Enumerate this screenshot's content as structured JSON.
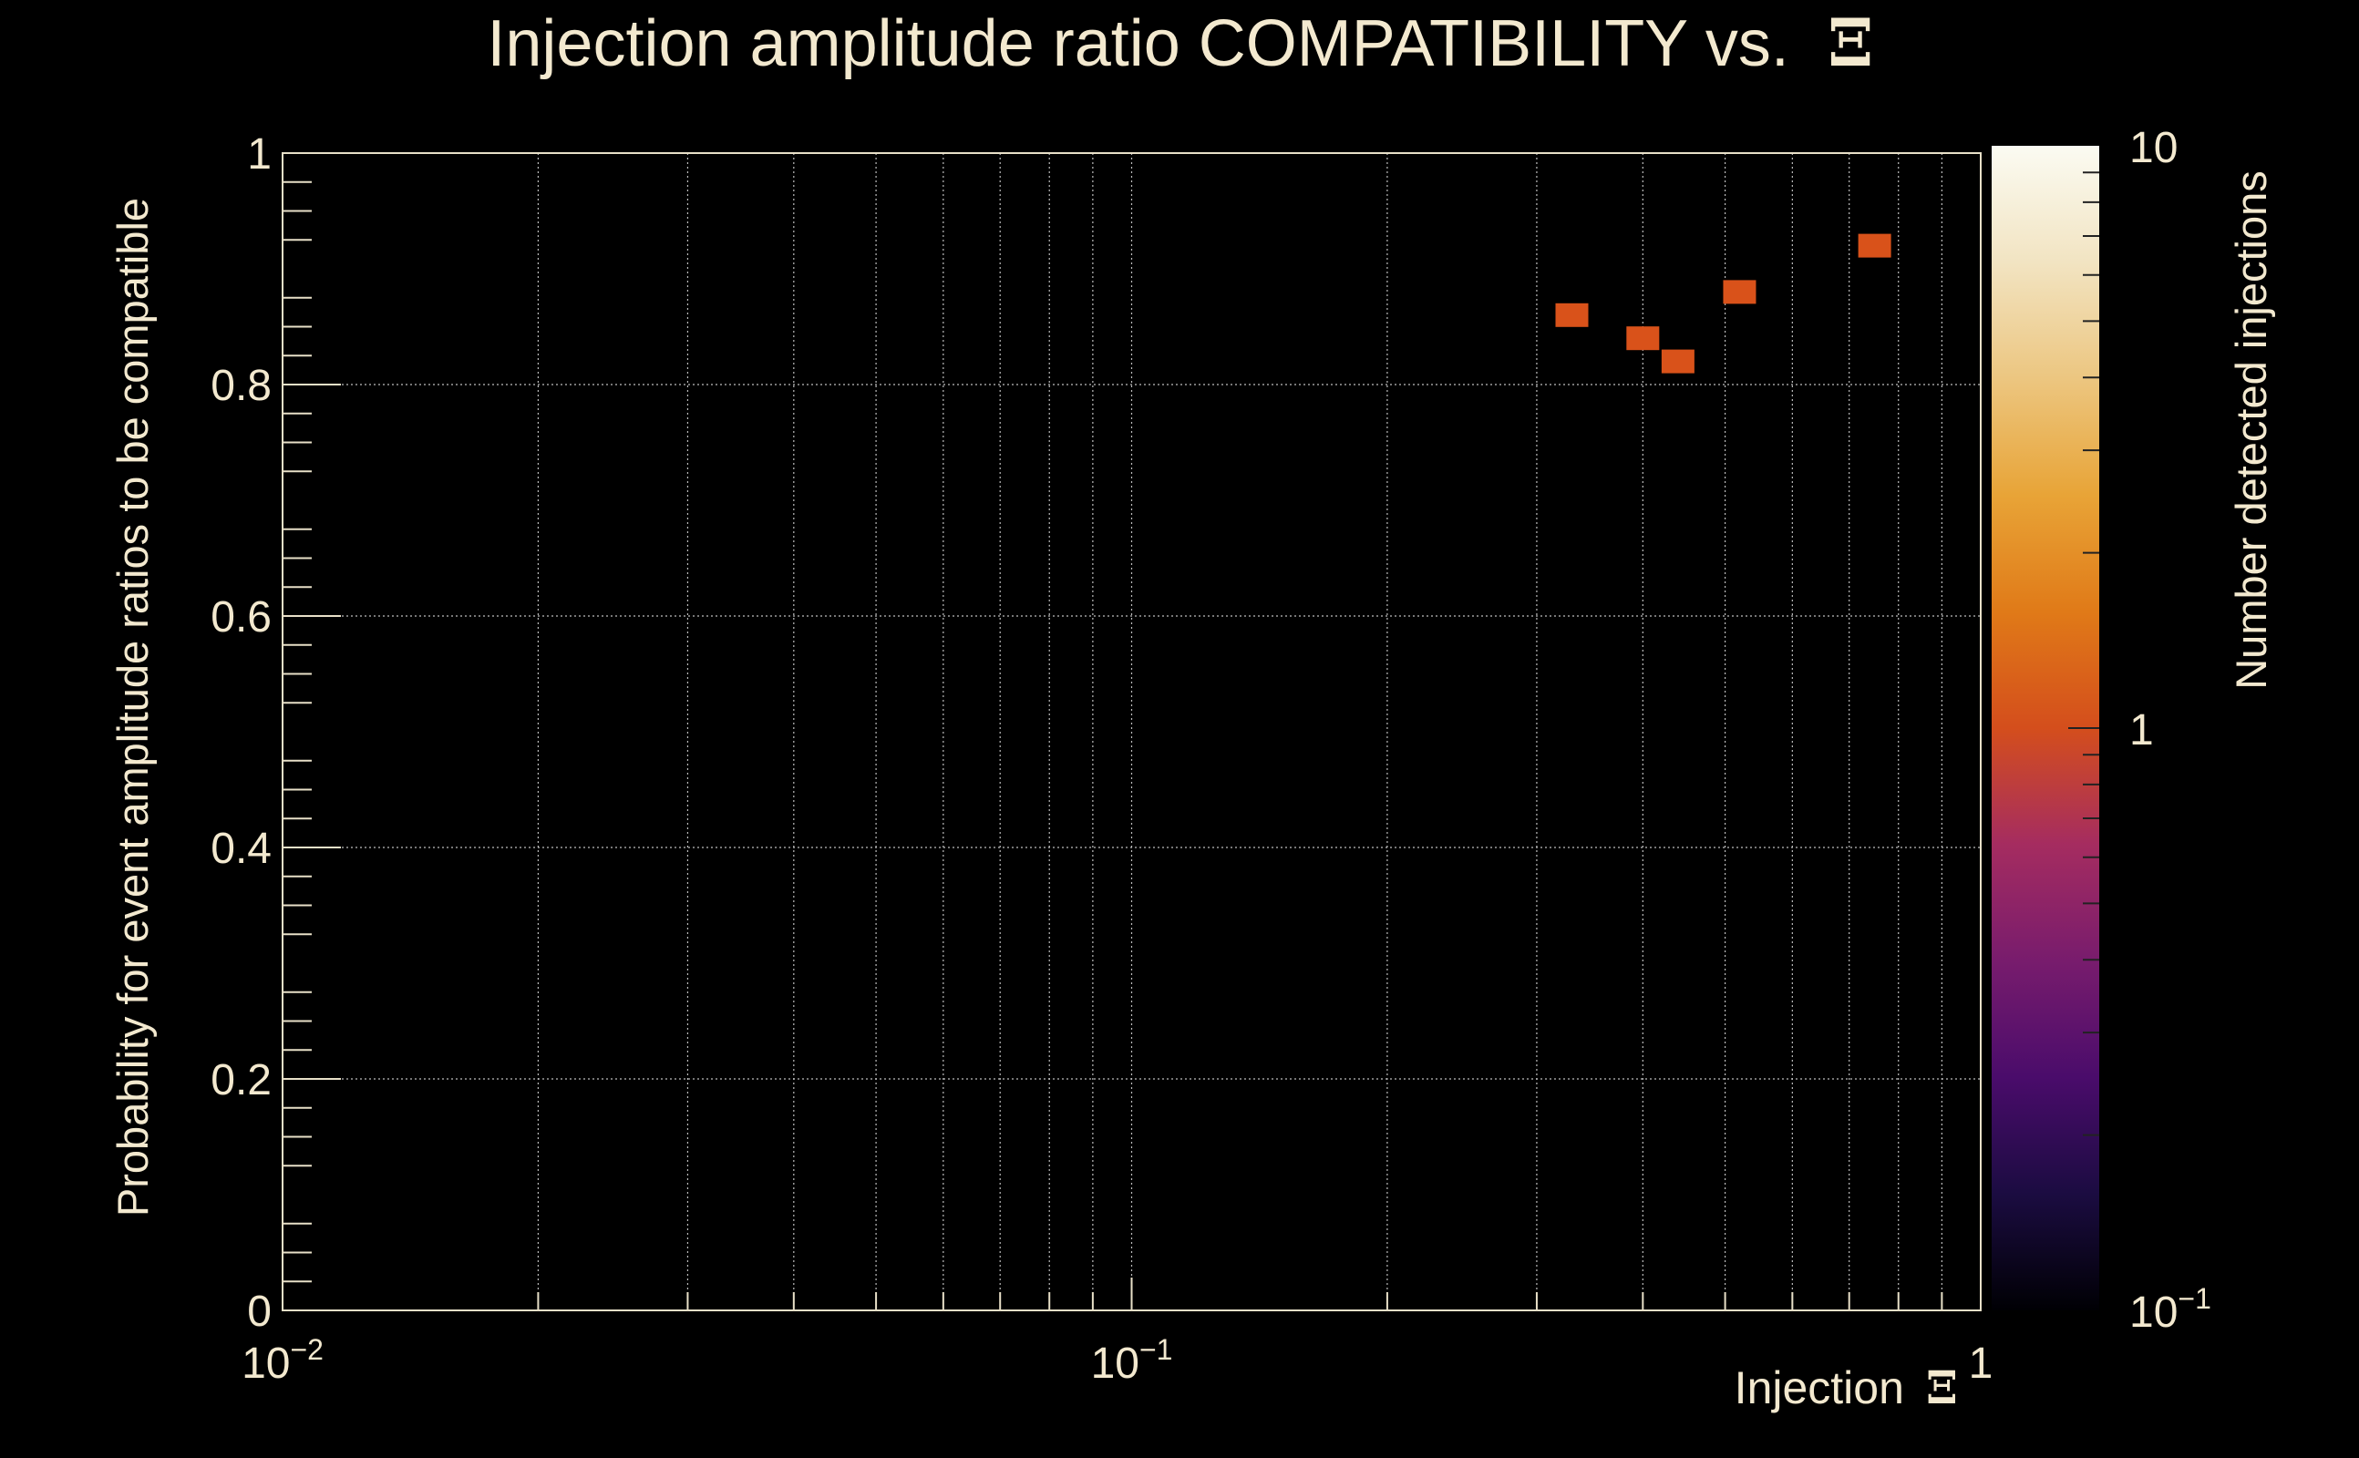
{
  "chart_data": {
    "type": "heatmap",
    "title": "Injection amplitude ratio COMPATIBILITY vs.",
    "title_symbol": "Ξ",
    "xlabel": "Injection",
    "xlabel_symbol": "Ξ",
    "ylabel": "Probability for event amplitude ratios to be compatible",
    "zlabel": "Number detected injections",
    "x_scale": "log",
    "xlim": [
      0.01,
      1
    ],
    "ylim": [
      0,
      1
    ],
    "z_scale": "log",
    "zlim": [
      0.1,
      10
    ],
    "grid": true,
    "x_ticks": [
      {
        "value": 0.01,
        "base": "10",
        "exp": "−2"
      },
      {
        "value": 0.1,
        "base": "10",
        "exp": "−1"
      },
      {
        "value": 1,
        "base": "1",
        "exp": ""
      }
    ],
    "y_ticks": [
      {
        "value": 0,
        "label": "0"
      },
      {
        "value": 0.2,
        "label": "0.2"
      },
      {
        "value": 0.4,
        "label": "0.4"
      },
      {
        "value": 0.6,
        "label": "0.6"
      },
      {
        "value": 0.8,
        "label": "0.8"
      },
      {
        "value": 1,
        "label": "1"
      }
    ],
    "z_ticks": [
      {
        "value": 10,
        "base": "10",
        "exp": ""
      },
      {
        "value": 1,
        "base": "1",
        "exp": ""
      },
      {
        "value": 0.1,
        "base": "10",
        "exp": "−1"
      }
    ],
    "bins": [
      {
        "x": 0.33,
        "y": 0.86,
        "count": 1
      },
      {
        "x": 0.4,
        "y": 0.84,
        "count": 1
      },
      {
        "x": 0.44,
        "y": 0.82,
        "count": 1
      },
      {
        "x": 0.52,
        "y": 0.88,
        "count": 1
      },
      {
        "x": 0.75,
        "y": 0.92,
        "count": 1
      }
    ],
    "colors": {
      "background": "#000000",
      "text": "#f3e9cf",
      "grid": "#bdbdbd",
      "colormap": [
        "#000004",
        "#1b0c41",
        "#4a0c6b",
        "#781c6d",
        "#a52c60",
        "#cf4446",
        "#ed6925",
        "#fb9b06",
        "#f7d13d",
        "#fcffa4",
        "#fbfbf2"
      ]
    }
  }
}
